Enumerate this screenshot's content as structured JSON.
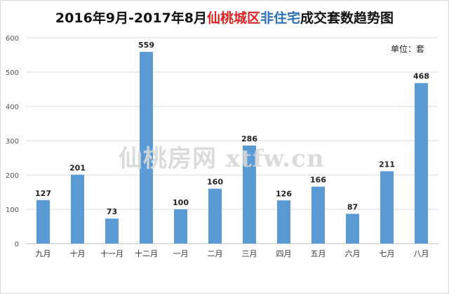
{
  "title": {
    "part1": "2016年9月-2017年8月",
    "part2": "仙桃城区",
    "part3": "非住宅",
    "part4": "成交套数趋势图"
  },
  "unit_label": "单位：套",
  "watermark": "仙桃房网 xtfw.cn",
  "colors": {
    "bar": "#5b9bd5",
    "grid": "#d9d9d9",
    "axis": "#bfbfbf",
    "title_red": "#e02020",
    "title_blue": "#2d6fb8"
  },
  "chart_data": {
    "type": "bar",
    "categories": [
      "九月",
      "十月",
      "十一月",
      "十二月",
      "一月",
      "二月",
      "三月",
      "四月",
      "五月",
      "六月",
      "七月",
      "八月"
    ],
    "values": [
      127,
      201,
      73,
      559,
      100,
      160,
      286,
      126,
      166,
      87,
      211,
      468
    ],
    "ylim": [
      0,
      600
    ],
    "yticks": [
      0,
      100,
      200,
      300,
      400,
      500,
      600
    ],
    "grid": true,
    "data_labels": true
  }
}
